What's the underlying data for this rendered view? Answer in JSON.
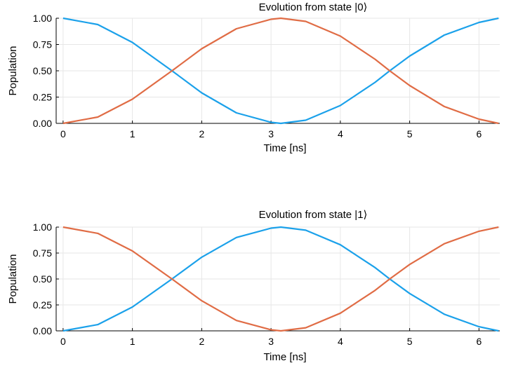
{
  "chart_data": [
    {
      "type": "line",
      "title": "Evolution from state |0⟩",
      "xlabel": "Time [ns]",
      "ylabel": "Population",
      "xlim": [
        -0.1,
        6.3
      ],
      "ylim": [
        0,
        1
      ],
      "xticks": [
        0,
        1,
        2,
        3,
        4,
        5,
        6
      ],
      "xtick_labels": [
        "0",
        "1",
        "2",
        "3",
        "4",
        "5",
        "6"
      ],
      "yticks": [
        0,
        0.25,
        0.5,
        0.75,
        1
      ],
      "ytick_labels": [
        "0.00",
        "0.25",
        "0.50",
        "0.75",
        "1.00"
      ],
      "grid": true,
      "x": [
        0,
        0.5,
        1,
        1.5708,
        2,
        2.5,
        3,
        3.1416,
        3.5,
        4,
        4.5,
        4.7124,
        5,
        5.5,
        6,
        6.2832
      ],
      "series": [
        {
          "color": "#1ba1ea",
          "values": [
            1,
            0.94,
            0.77,
            0.5,
            0.29,
            0.1,
            0.01,
            0,
            0.03,
            0.17,
            0.39,
            0.5,
            0.64,
            0.84,
            0.96,
            1
          ]
        },
        {
          "color": "#e06c45",
          "values": [
            0,
            0.06,
            0.23,
            0.5,
            0.71,
            0.9,
            0.99,
            1,
            0.97,
            0.83,
            0.61,
            0.5,
            0.36,
            0.16,
            0.04,
            0
          ]
        }
      ]
    },
    {
      "type": "line",
      "title": "Evolution from state |1⟩",
      "xlabel": "Time [ns]",
      "ylabel": "Population",
      "xlim": [
        -0.1,
        6.3
      ],
      "ylim": [
        0,
        1
      ],
      "xticks": [
        0,
        1,
        2,
        3,
        4,
        5,
        6
      ],
      "xtick_labels": [
        "0",
        "1",
        "2",
        "3",
        "4",
        "5",
        "6"
      ],
      "yticks": [
        0,
        0.25,
        0.5,
        0.75,
        1
      ],
      "ytick_labels": [
        "0.00",
        "0.25",
        "0.50",
        "0.75",
        "1.00"
      ],
      "grid": true,
      "x": [
        0,
        0.5,
        1,
        1.5708,
        2,
        2.5,
        3,
        3.1416,
        3.5,
        4,
        4.5,
        4.7124,
        5,
        5.5,
        6,
        6.2832
      ],
      "series": [
        {
          "color": "#1ba1ea",
          "values": [
            0,
            0.06,
            0.23,
            0.5,
            0.71,
            0.9,
            0.99,
            1,
            0.97,
            0.83,
            0.61,
            0.5,
            0.36,
            0.16,
            0.04,
            0
          ]
        },
        {
          "color": "#e06c45",
          "values": [
            1,
            0.94,
            0.77,
            0.5,
            0.29,
            0.1,
            0.01,
            0,
            0.03,
            0.17,
            0.39,
            0.5,
            0.64,
            0.84,
            0.96,
            1
          ]
        }
      ]
    }
  ]
}
